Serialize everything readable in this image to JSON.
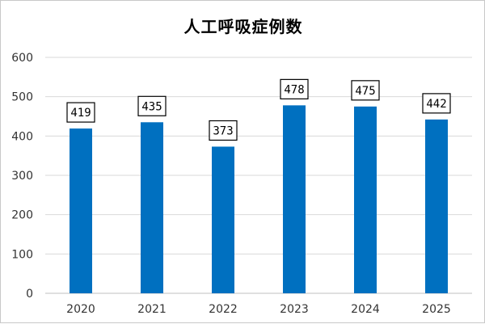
{
  "chart_data": {
    "type": "bar",
    "title": "人工呼吸症例数",
    "xlabel": "",
    "ylabel": "",
    "categories": [
      "2020",
      "2021",
      "2022",
      "2023",
      "2024",
      "2025"
    ],
    "values": [
      419,
      435,
      373,
      478,
      475,
      442
    ],
    "ylim": [
      0,
      600
    ],
    "yticks": [
      0,
      100,
      200,
      300,
      400,
      500,
      600
    ],
    "grid": true,
    "legend": "none",
    "bar_color": "#0070C0",
    "data_labels": true
  }
}
